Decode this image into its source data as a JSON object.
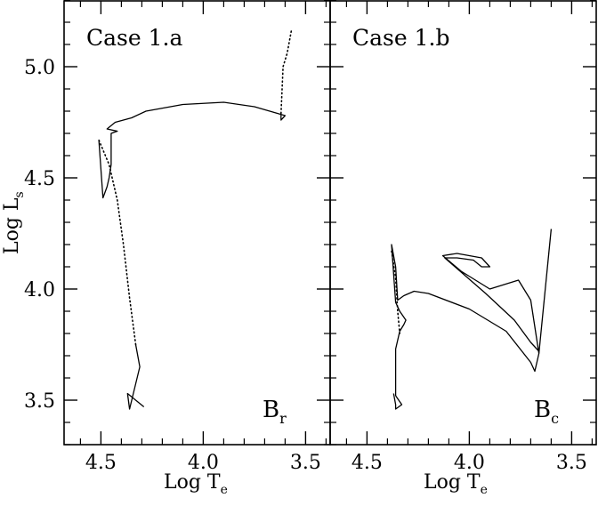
{
  "chart_data": [
    {
      "type": "line",
      "title": "Case 1.a",
      "corner_label": "B",
      "corner_label_sub": "r",
      "xlabel": "Log T",
      "xlabel_sub": "e",
      "ylabel": "Log L",
      "ylabel_sub": "s",
      "x_reversed": true,
      "xlim": [
        4.68,
        3.38
      ],
      "ylim": [
        3.3,
        5.3
      ],
      "xticks": [
        4.5,
        4.0,
        3.5
      ],
      "xtick_labels": [
        "4.5",
        "4.0",
        "3.5"
      ],
      "yticks": [
        3.5,
        4.0,
        4.5,
        5.0
      ],
      "ytick_labels": [
        "3.5",
        "4.0",
        "4.5",
        "5.0"
      ],
      "series": [
        {
          "style": "solid",
          "points": [
            [
              4.33,
              3.75
            ],
            [
              4.31,
              3.65
            ],
            [
              4.36,
              3.46
            ],
            [
              4.37,
              3.53
            ],
            [
              4.29,
              3.47
            ]
          ]
        },
        {
          "style": "dotted",
          "points": [
            [
              4.33,
              3.75
            ],
            [
              4.36,
              3.96
            ],
            [
              4.39,
              4.2
            ],
            [
              4.42,
              4.4
            ],
            [
              4.46,
              4.56
            ],
            [
              4.51,
              4.67
            ]
          ]
        },
        {
          "style": "solid",
          "points": [
            [
              4.51,
              4.67
            ],
            [
              4.49,
              4.41
            ],
            [
              4.47,
              4.46
            ],
            [
              4.46,
              4.5
            ],
            [
              4.45,
              4.56
            ],
            [
              4.45,
              4.7
            ],
            [
              4.42,
              4.71
            ],
            [
              4.47,
              4.72
            ],
            [
              4.43,
              4.75
            ],
            [
              4.35,
              4.77
            ],
            [
              4.28,
              4.8
            ],
            [
              4.1,
              4.83
            ],
            [
              3.9,
              4.84
            ],
            [
              3.75,
              4.82
            ],
            [
              3.6,
              4.78
            ],
            [
              3.62,
              4.76
            ],
            [
              3.62,
              4.79
            ]
          ]
        },
        {
          "style": "dotted",
          "points": [
            [
              3.62,
              4.79
            ],
            [
              3.61,
              5.0
            ],
            [
              3.59,
              5.06
            ],
            [
              3.57,
              5.16
            ]
          ]
        }
      ]
    },
    {
      "type": "line",
      "title": "Case 1.b",
      "corner_label": "B",
      "corner_label_sub": "c",
      "xlabel": "Log T",
      "xlabel_sub": "e",
      "ylabel": "",
      "x_reversed": true,
      "xlim": [
        4.68,
        3.38
      ],
      "ylim": [
        3.3,
        5.3
      ],
      "xticks": [
        4.5,
        4.0,
        3.5
      ],
      "xtick_labels": [
        "4.5",
        "4.0",
        "3.5"
      ],
      "yticks": [
        3.5,
        4.0,
        4.5,
        5.0
      ],
      "ytick_labels": [],
      "series": [
        {
          "style": "solid",
          "points": [
            [
              4.37,
              3.53
            ],
            [
              4.36,
              3.48
            ],
            [
              4.36,
              3.46
            ],
            [
              4.33,
              3.48
            ],
            [
              4.36,
              3.52
            ]
          ]
        },
        {
          "style": "solid",
          "points": [
            [
              4.36,
              3.52
            ],
            [
              4.36,
              3.65
            ],
            [
              4.36,
              3.73
            ],
            [
              4.35,
              3.77
            ],
            [
              4.34,
              3.81
            ],
            [
              4.32,
              3.84
            ],
            [
              4.31,
              3.86
            ],
            [
              4.34,
              3.9
            ],
            [
              4.36,
              3.94
            ],
            [
              4.38,
              4.2
            ],
            [
              4.36,
              4.1
            ],
            [
              4.35,
              3.95
            ],
            [
              4.32,
              3.97
            ],
            [
              4.27,
              3.99
            ],
            [
              4.2,
              3.98
            ],
            [
              4.0,
              3.91
            ],
            [
              3.82,
              3.81
            ],
            [
              3.7,
              3.67
            ],
            [
              3.68,
              3.63
            ],
            [
              3.66,
              3.71
            ],
            [
              3.6,
              4.27
            ]
          ]
        },
        {
          "style": "dotted",
          "points": [
            [
              4.38,
              4.17
            ],
            [
              4.36,
              4.05
            ],
            [
              4.35,
              3.9
            ],
            [
              4.34,
              3.8
            ]
          ]
        },
        {
          "style": "solid",
          "points": [
            [
              3.66,
              3.71
            ],
            [
              3.7,
              3.95
            ],
            [
              3.76,
              4.04
            ],
            [
              3.9,
              4.0
            ],
            [
              4.04,
              4.08
            ],
            [
              4.13,
              4.15
            ],
            [
              4.06,
              4.16
            ],
            [
              3.94,
              4.14
            ],
            [
              3.9,
              4.1
            ],
            [
              3.94,
              4.1
            ],
            [
              3.98,
              4.13
            ],
            [
              4.06,
              4.14
            ],
            [
              4.12,
              4.14
            ],
            [
              3.92,
              3.98
            ],
            [
              3.78,
              3.86
            ],
            [
              3.7,
              3.76
            ],
            [
              3.66,
              3.72
            ]
          ]
        }
      ]
    }
  ]
}
